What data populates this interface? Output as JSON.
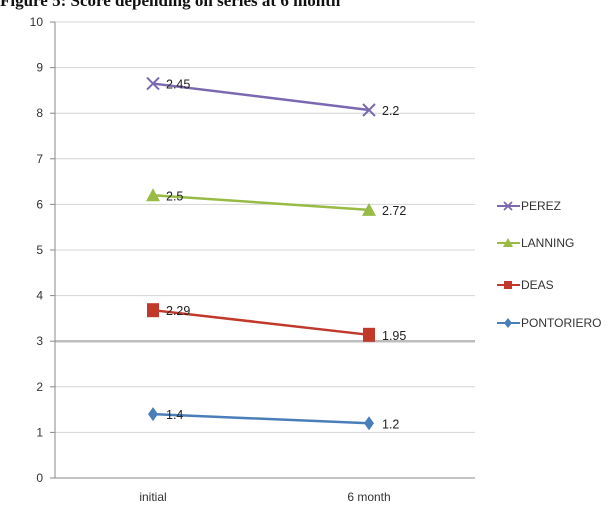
{
  "caption": "Figure 5: Score depending on series at 6 month",
  "chart_data": {
    "type": "line",
    "categories": [
      "initial",
      "6 month"
    ],
    "ylim": [
      0,
      10
    ],
    "yticks": [
      0,
      1,
      2,
      3,
      4,
      5,
      6,
      7,
      8,
      9,
      10
    ],
    "grid": true,
    "legend_position": "right",
    "series": [
      {
        "name": "PEREZ",
        "values": [
          8.65,
          8.07
        ],
        "labels": [
          "2.45",
          "2.2"
        ],
        "color": "#7b68b0",
        "marker": "x"
      },
      {
        "name": "LANNING",
        "values": [
          6.2,
          5.88
        ],
        "labels": [
          "2.5",
          "2.72"
        ],
        "color": "#98bb45",
        "marker": "triangle"
      },
      {
        "name": "DEAS",
        "values": [
          3.68,
          3.14
        ],
        "labels": [
          "2.29",
          "1.95"
        ],
        "color": "#c0392b",
        "marker": "square"
      },
      {
        "name": "PONTORIERO",
        "values": [
          1.4,
          1.2
        ],
        "labels": [
          "1.4",
          "1.2"
        ],
        "color": "#4a7ebb",
        "marker": "diamond"
      }
    ]
  }
}
